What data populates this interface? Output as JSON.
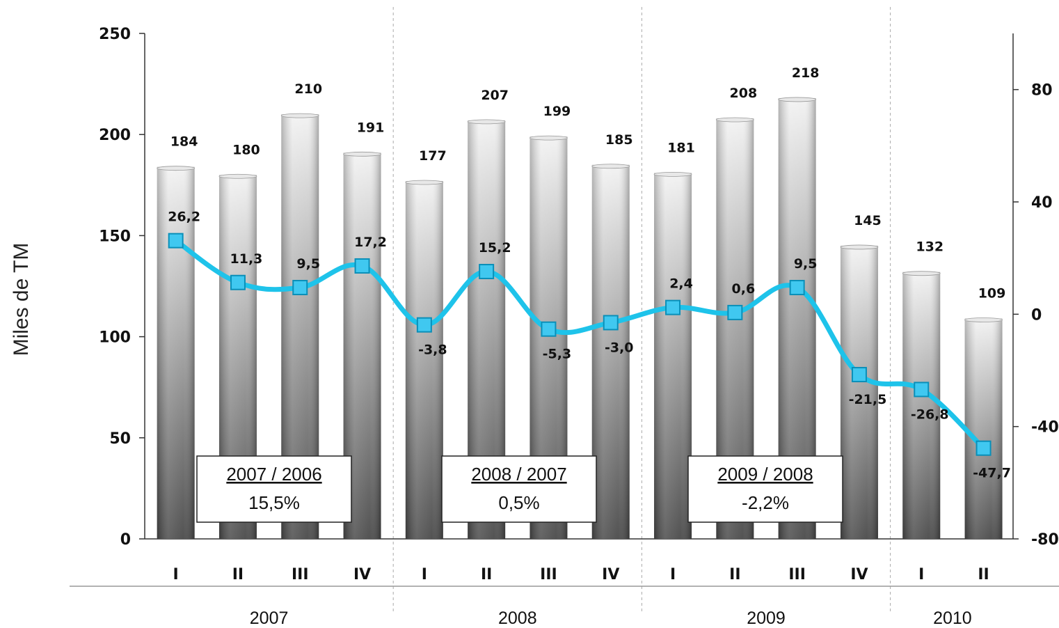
{
  "chart_data": {
    "type": "bar",
    "ylabel": "Miles de TM",
    "ylim": [
      0,
      250
    ],
    "y_ticks": [
      "0",
      "50",
      "100",
      "150",
      "200",
      "250"
    ],
    "y2lim": [
      -80,
      100
    ],
    "y2_ticks": [
      "-80",
      "-40",
      "0",
      "40",
      "80"
    ],
    "categories": [
      "I",
      "II",
      "III",
      "IV",
      "I",
      "II",
      "III",
      "IV",
      "I",
      "II",
      "III",
      "IV",
      "I",
      "II"
    ],
    "years": [
      {
        "label": "2007",
        "quarters": 4
      },
      {
        "label": "2008",
        "quarters": 4
      },
      {
        "label": "2009",
        "quarters": 4
      },
      {
        "label": "2010",
        "quarters": 2
      }
    ],
    "series": [
      {
        "type": "bar",
        "axis": "left",
        "values": [
          184,
          180,
          210,
          191,
          177,
          207,
          199,
          185,
          181,
          208,
          218,
          145,
          132,
          109
        ],
        "labels": [
          "184",
          "180",
          "210",
          "191",
          "177",
          "207",
          "199",
          "185",
          "181",
          "208",
          "218",
          "145",
          "132",
          "109"
        ]
      },
      {
        "type": "line",
        "axis": "right",
        "values": [
          26.2,
          11.3,
          9.5,
          17.2,
          -3.8,
          15.2,
          -5.3,
          -3.0,
          2.4,
          0.6,
          9.5,
          -21.5,
          -26.8,
          -47.7
        ],
        "labels": [
          "26,2",
          "11,3",
          "9,5",
          "17,2",
          "-3,8",
          "15,2",
          "-5,3",
          "-3,0",
          "2,4",
          "0,6",
          "9,5",
          "-21,5",
          "-26,8",
          "-47,7"
        ]
      }
    ],
    "annotations": [
      {
        "title": "2007 / 2006",
        "value": "15,5%"
      },
      {
        "title": "2008 / 2007",
        "value": "0,5%"
      },
      {
        "title": "2009 / 2008",
        "value": "-2,2%"
      }
    ],
    "colors": {
      "bar": "#8a8a8a",
      "line": "#1ec3ea",
      "marker": "#40c8f0"
    },
    "grid": false
  }
}
